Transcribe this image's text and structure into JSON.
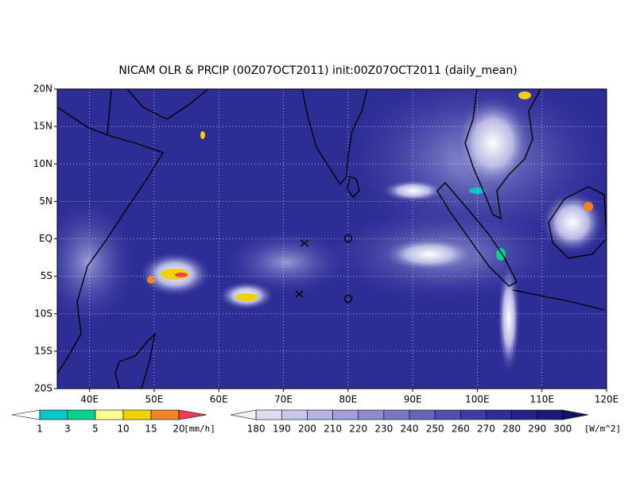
{
  "title": "NICAM OLR & PRCIP (00Z07OCT2011) init:00Z07OCT2011 (daily_mean)",
  "map": {
    "lat_labels": [
      "20N",
      "15N",
      "10N",
      "5N",
      "EQ",
      "5S",
      "10S",
      "15S",
      "20S"
    ],
    "lon_labels": [
      "40E",
      "50E",
      "60E",
      "70E",
      "80E",
      "90E",
      "100E",
      "110E",
      "120E"
    ]
  },
  "precip_legend": {
    "labels": [
      "1",
      "3",
      "5",
      "10",
      "15",
      "20"
    ],
    "unit": "[mm/h]",
    "colors": [
      "#ffffff",
      "#00c8c8",
      "#00d28c",
      "#ffff8c",
      "#f0d200",
      "#f08228",
      "#f03c50"
    ]
  },
  "olr_legend": {
    "labels": [
      "180",
      "190",
      "200",
      "210",
      "220",
      "230",
      "240",
      "250",
      "260",
      "270",
      "280",
      "290",
      "300"
    ],
    "unit": "[W/m^2]",
    "colors": [
      "#f0f0fa",
      "#dcdcf0",
      "#c8c8e8",
      "#b4b4e0",
      "#a0a0d6",
      "#8c8ccc",
      "#7878c2",
      "#6464b8",
      "#5050ae",
      "#3c3ca4",
      "#2d2d96",
      "#232387",
      "#1a1a78",
      "#12126a"
    ]
  }
}
